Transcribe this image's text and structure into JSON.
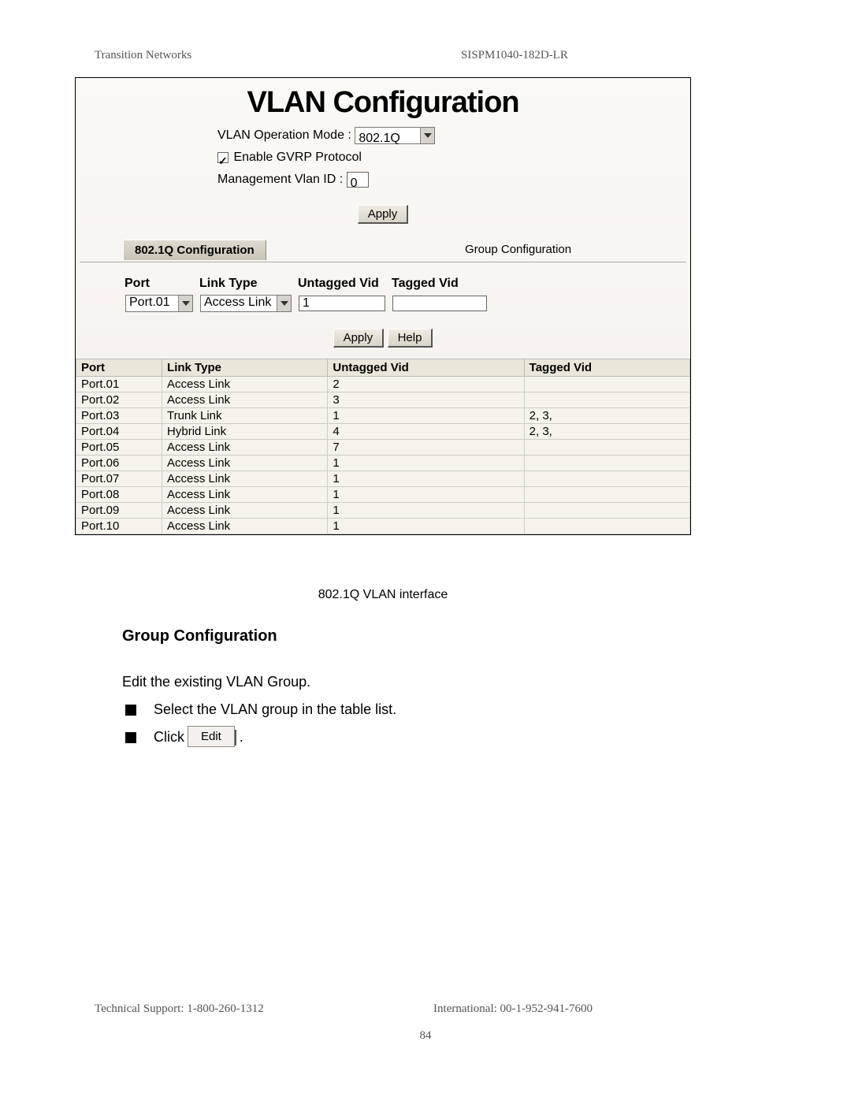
{
  "header": {
    "left": "Transition Networks",
    "right": "SISPM1040-182D-LR"
  },
  "screenshot": {
    "title": "VLAN Configuration",
    "form": {
      "operation_mode_label": "VLAN Operation Mode :",
      "operation_mode_value": "802.1Q",
      "gvrp_checked": true,
      "gvrp_label": "Enable GVRP Protocol",
      "mgmt_vlan_label": "Management Vlan ID :",
      "mgmt_vlan_value": "0",
      "apply_label": "Apply"
    },
    "tabs": {
      "active": "802.1Q Configuration",
      "inactive": "Group Configuration"
    },
    "edit": {
      "headers": [
        "Port",
        "Link Type",
        "Untagged Vid",
        "Tagged Vid"
      ],
      "port_value": "Port.01",
      "link_type_value": "Access Link",
      "untagged_value": "1",
      "tagged_value": "",
      "apply_label": "Apply",
      "help_label": "Help"
    },
    "table": {
      "headers": [
        "Port",
        "Link Type",
        "Untagged Vid",
        "Tagged Vid"
      ],
      "col_widths_pct": [
        14,
        27,
        32,
        27
      ],
      "header_bg": "#eae6da",
      "cell_bg": "#f6f3ec",
      "border_color": "#cccccc",
      "rows": [
        [
          "Port.01",
          "Access Link",
          "2",
          ""
        ],
        [
          "Port.02",
          "Access Link",
          "3",
          ""
        ],
        [
          "Port.03",
          "Trunk Link",
          "1",
          "2, 3,"
        ],
        [
          "Port.04",
          "Hybrid Link",
          "4",
          "2, 3,"
        ],
        [
          "Port.05",
          "Access Link",
          "7",
          ""
        ],
        [
          "Port.06",
          "Access Link",
          "1",
          ""
        ],
        [
          "Port.07",
          "Access Link",
          "1",
          ""
        ],
        [
          "Port.08",
          "Access Link",
          "1",
          ""
        ],
        [
          "Port.09",
          "Access Link",
          "1",
          ""
        ],
        [
          "Port.10",
          "Access Link",
          "1",
          ""
        ]
      ]
    }
  },
  "caption": "802.1Q VLAN interface",
  "body": {
    "heading": "Group Configuration",
    "para": "Edit the existing VLAN Group.",
    "bullet1": "Select the VLAN group in the table list.",
    "bullet2_prefix": "Click",
    "edit_button": "Edit",
    "bullet2_suffix": "."
  },
  "footer": {
    "left": "Technical Support: 1-800-260-1312",
    "right": "International: 00-1-952-941-7600",
    "page": "84"
  }
}
